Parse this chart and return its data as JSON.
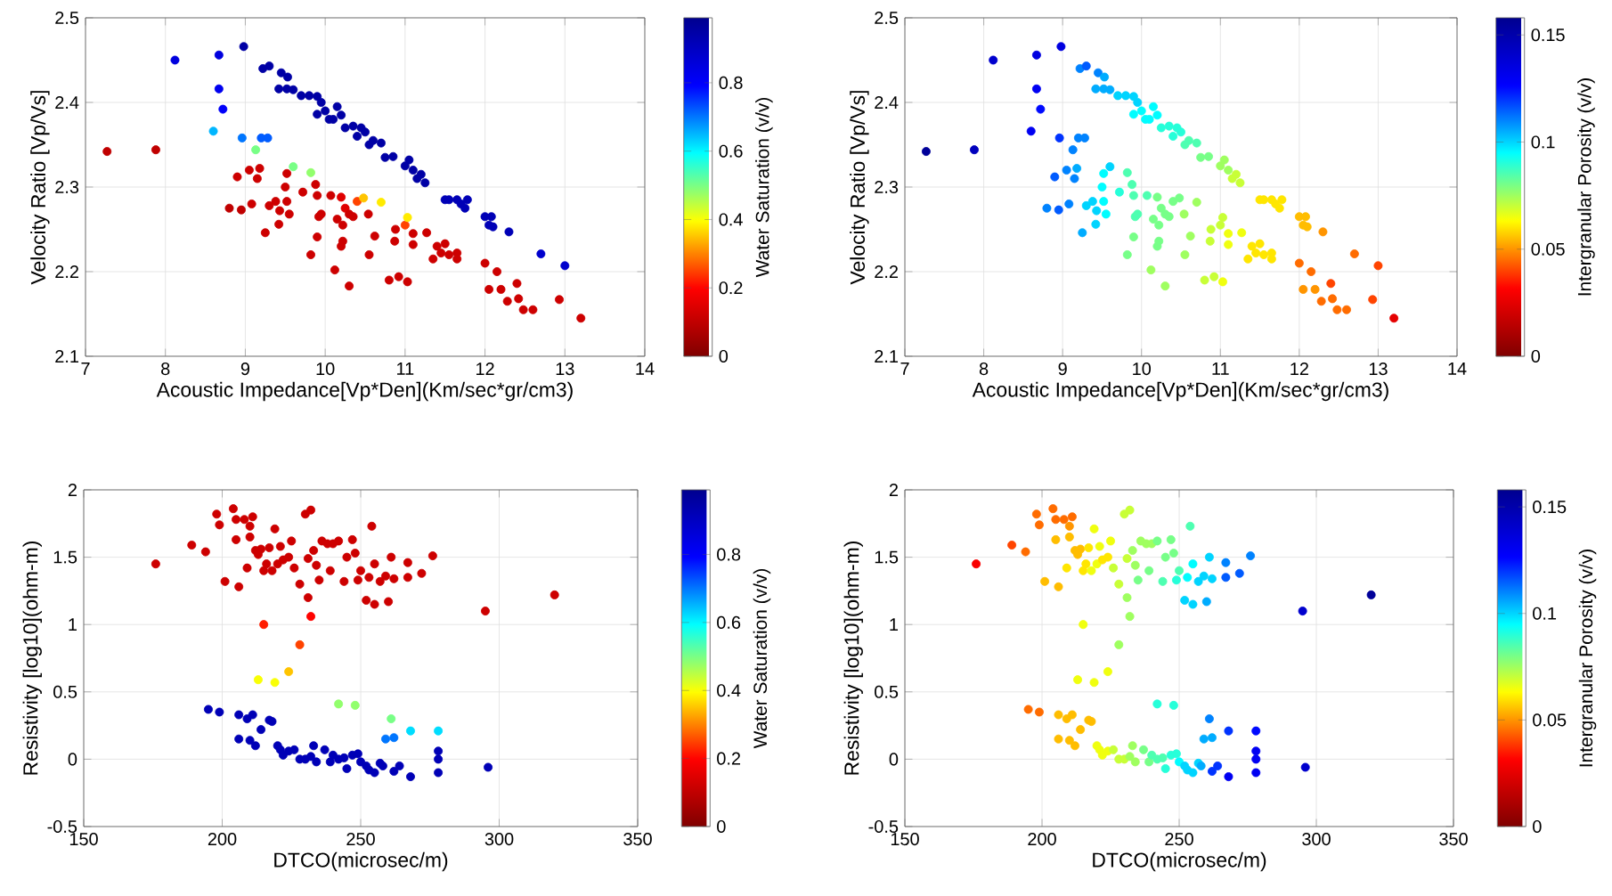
{
  "chart_data": [
    {
      "type": "scatter",
      "xlabel": "Acoustic Impedance[Vp*Den](Km/sec*gr/cm3)",
      "ylabel": "Velocity Ratio [Vp/Vs]",
      "clabel": "Water Saturation (v/v)",
      "xlim": [
        7,
        14
      ],
      "ylim": [
        2.1,
        2.5
      ],
      "xticks": [
        7,
        8,
        9,
        10,
        11,
        12,
        13,
        14
      ],
      "yticks": [
        2.1,
        2.2,
        2.3,
        2.4,
        2.5
      ],
      "clim": [
        0,
        0.99
      ],
      "cticks": [
        0,
        0.2,
        0.4,
        0.6,
        0.8
      ],
      "grid": true,
      "marker": "circle",
      "x": [
        8.12,
        8.67,
        8.67,
        8.72,
        8.98,
        9.22,
        9.3,
        9.45,
        9.53,
        9.42,
        9.52,
        9.6,
        9.7,
        9.8,
        9.9,
        9.95,
        9.9,
        10.0,
        10.05,
        10.15,
        10.2,
        10.1,
        10.25,
        10.35,
        10.4,
        10.5,
        10.45,
        10.6,
        10.7,
        10.55,
        10.75,
        10.85,
        11.0,
        11.05,
        11.1,
        11.2,
        11.25,
        11.15,
        11.5,
        11.55,
        11.65,
        11.7,
        11.78,
        11.75,
        12.0,
        12.08,
        12.05,
        12.1,
        12.3,
        12.7,
        13.0,
        8.6,
        8.96,
        9.2,
        9.28,
        9.13,
        9.6,
        9.82,
        7.27,
        7.88,
        8.8,
        8.9,
        8.95,
        9.05,
        9.08,
        9.15,
        9.18,
        9.25,
        9.3,
        9.38,
        9.42,
        9.43,
        9.52,
        9.5,
        9.52,
        9.55,
        9.72,
        9.82,
        9.88,
        9.9,
        9.9,
        9.92,
        9.95,
        10.07,
        10.12,
        10.15,
        10.2,
        10.22,
        10.2,
        10.22,
        10.25,
        10.3,
        10.3,
        10.35,
        10.4,
        10.48,
        10.54,
        10.55,
        10.62,
        10.7,
        10.8,
        10.87,
        10.88,
        10.92,
        11.0,
        11.03,
        11.03,
        11.1,
        11.1,
        11.27,
        11.35,
        11.4,
        11.45,
        11.5,
        11.55,
        11.65,
        11.65,
        12.0,
        12.05,
        12.15,
        12.2,
        12.28,
        12.4,
        12.42,
        12.48,
        12.6,
        12.93,
        13.2
      ],
      "values": [
        2.45,
        2.456,
        2.416,
        2.392,
        2.466,
        2.44,
        2.443,
        2.435,
        2.43,
        2.416,
        2.416,
        2.415,
        2.408,
        2.408,
        2.407,
        2.4,
        2.386,
        2.39,
        2.38,
        2.395,
        2.385,
        2.38,
        2.37,
        2.372,
        2.36,
        2.365,
        2.37,
        2.355,
        2.352,
        2.35,
        2.335,
        2.336,
        2.325,
        2.332,
        2.32,
        2.315,
        2.305,
        2.31,
        2.285,
        2.285,
        2.285,
        2.28,
        2.285,
        2.275,
        2.265,
        2.265,
        2.255,
        2.253,
        2.247,
        2.221,
        2.207,
        2.366,
        2.358,
        2.358,
        2.358,
        2.344,
        2.324,
        2.317,
        2.342,
        2.344,
        2.275,
        2.312,
        2.273,
        2.32,
        2.28,
        2.31,
        2.322,
        2.246,
        2.278,
        2.283,
        2.256,
        2.272,
        2.316,
        2.3,
        2.283,
        2.268,
        2.294,
        2.22,
        2.303,
        2.29,
        2.241,
        2.265,
        2.268,
        2.29,
        2.202,
        2.262,
        2.23,
        2.236,
        2.288,
        2.255,
        2.275,
        2.183,
        2.268,
        2.265,
        2.283,
        2.287,
        2.268,
        2.22,
        2.242,
        2.282,
        2.19,
        2.236,
        2.25,
        2.194,
        2.255,
        2.264,
        2.188,
        2.232,
        2.245,
        2.246,
        2.215,
        2.23,
        2.222,
        2.233,
        2.22,
        2.222,
        2.215,
        2.21,
        2.179,
        2.2,
        2.179,
        2.165,
        2.186,
        2.168,
        2.155,
        2.155,
        2.167,
        2.145
      ],
      "cvalues": [
        0.85,
        0.85,
        0.82,
        0.8,
        0.95,
        0.95,
        0.95,
        0.95,
        0.95,
        0.95,
        0.95,
        0.95,
        0.95,
        0.95,
        0.95,
        0.95,
        0.95,
        0.95,
        0.95,
        0.95,
        0.95,
        0.95,
        0.95,
        0.95,
        0.95,
        0.95,
        0.95,
        0.95,
        0.95,
        0.95,
        0.95,
        0.95,
        0.95,
        0.95,
        0.95,
        0.95,
        0.95,
        0.95,
        0.92,
        0.92,
        0.92,
        0.92,
        0.92,
        0.92,
        0.92,
        0.92,
        0.92,
        0.92,
        0.92,
        0.88,
        0.88,
        0.65,
        0.7,
        0.72,
        0.72,
        0.5,
        0.5,
        0.48,
        0.1,
        0.1,
        0.1,
        0.12,
        0.1,
        0.12,
        0.12,
        0.12,
        0.12,
        0.12,
        0.12,
        0.12,
        0.12,
        0.12,
        0.12,
        0.12,
        0.12,
        0.12,
        0.12,
        0.12,
        0.12,
        0.12,
        0.12,
        0.12,
        0.12,
        0.12,
        0.12,
        0.12,
        0.12,
        0.12,
        0.15,
        0.12,
        0.15,
        0.12,
        0.12,
        0.12,
        0.25,
        0.35,
        0.12,
        0.12,
        0.12,
        0.38,
        0.12,
        0.12,
        0.12,
        0.12,
        0.25,
        0.38,
        0.12,
        0.12,
        0.12,
        0.12,
        0.12,
        0.12,
        0.12,
        0.12,
        0.12,
        0.12,
        0.12,
        0.12,
        0.12,
        0.12,
        0.12,
        0.12,
        0.12,
        0.12,
        0.12,
        0.12,
        0.12,
        0.12
      ]
    },
    {
      "type": "scatter",
      "xlabel": "Acoustic Impedance[Vp*Den](Km/sec*gr/cm3)",
      "ylabel": "Velocity Ratio [Vp/Vs]",
      "clabel": "Intergranular Porosity (v/v)",
      "xlim": [
        7,
        14
      ],
      "ylim": [
        2.1,
        2.5
      ],
      "xticks": [
        7,
        8,
        9,
        10,
        11,
        12,
        13,
        14
      ],
      "yticks": [
        2.1,
        2.2,
        2.3,
        2.4,
        2.5
      ],
      "clim": [
        0,
        0.158
      ],
      "cticks": [
        0,
        0.05,
        0.1,
        0.15
      ],
      "grid": true,
      "marker": "circle",
      "x": [
        8.12,
        8.67,
        8.67,
        8.72,
        8.98,
        9.22,
        9.3,
        9.45,
        9.53,
        9.42,
        9.52,
        9.6,
        9.7,
        9.8,
        9.9,
        9.95,
        9.9,
        10.0,
        10.05,
        10.15,
        10.2,
        10.1,
        10.25,
        10.35,
        10.4,
        10.5,
        10.45,
        10.6,
        10.7,
        10.55,
        10.75,
        10.85,
        11.0,
        11.05,
        11.1,
        11.2,
        11.25,
        11.15,
        11.5,
        11.55,
        11.65,
        11.7,
        11.78,
        11.75,
        12.0,
        12.08,
        12.05,
        12.1,
        12.3,
        12.7,
        13.0,
        8.6,
        8.96,
        9.2,
        9.28,
        9.13,
        9.6,
        9.82,
        7.27,
        7.88,
        8.8,
        8.9,
        8.95,
        9.05,
        9.08,
        9.15,
        9.18,
        9.25,
        9.3,
        9.38,
        9.42,
        9.43,
        9.52,
        9.5,
        9.52,
        9.55,
        9.72,
        9.82,
        9.88,
        9.9,
        9.9,
        9.92,
        9.95,
        10.07,
        10.12,
        10.15,
        10.2,
        10.22,
        10.2,
        10.22,
        10.25,
        10.3,
        10.3,
        10.35,
        10.4,
        10.48,
        10.54,
        10.55,
        10.62,
        10.7,
        10.8,
        10.87,
        10.88,
        10.92,
        11.0,
        11.03,
        11.03,
        11.1,
        11.1,
        11.27,
        11.35,
        11.4,
        11.45,
        11.5,
        11.55,
        11.65,
        11.65,
        12.0,
        12.05,
        12.15,
        12.2,
        12.28,
        12.4,
        12.42,
        12.48,
        12.6,
        12.93,
        13.2
      ],
      "values": [
        2.45,
        2.456,
        2.416,
        2.392,
        2.466,
        2.44,
        2.443,
        2.435,
        2.43,
        2.416,
        2.416,
        2.415,
        2.408,
        2.408,
        2.407,
        2.4,
        2.386,
        2.39,
        2.38,
        2.395,
        2.385,
        2.38,
        2.37,
        2.372,
        2.36,
        2.365,
        2.37,
        2.355,
        2.352,
        2.35,
        2.335,
        2.336,
        2.325,
        2.332,
        2.32,
        2.315,
        2.305,
        2.31,
        2.285,
        2.285,
        2.285,
        2.28,
        2.285,
        2.275,
        2.265,
        2.265,
        2.255,
        2.253,
        2.247,
        2.221,
        2.207,
        2.366,
        2.358,
        2.358,
        2.358,
        2.344,
        2.324,
        2.317,
        2.342,
        2.344,
        2.275,
        2.312,
        2.273,
        2.32,
        2.28,
        2.31,
        2.322,
        2.246,
        2.278,
        2.283,
        2.256,
        2.272,
        2.316,
        2.3,
        2.283,
        2.268,
        2.294,
        2.22,
        2.303,
        2.29,
        2.241,
        2.265,
        2.268,
        2.29,
        2.202,
        2.262,
        2.23,
        2.236,
        2.288,
        2.255,
        2.275,
        2.183,
        2.268,
        2.265,
        2.283,
        2.287,
        2.268,
        2.22,
        2.242,
        2.282,
        2.19,
        2.236,
        2.25,
        2.194,
        2.255,
        2.264,
        2.188,
        2.232,
        2.245,
        2.246,
        2.215,
        2.23,
        2.222,
        2.233,
        2.22,
        2.222,
        2.215,
        2.21,
        2.179,
        2.2,
        2.179,
        2.165,
        2.186,
        2.168,
        2.155,
        2.155,
        2.167,
        2.145
      ],
      "cvalues": [
        0.14,
        0.135,
        0.13,
        0.125,
        0.135,
        0.11,
        0.115,
        0.11,
        0.105,
        0.105,
        0.105,
        0.105,
        0.1,
        0.1,
        0.1,
        0.1,
        0.095,
        0.095,
        0.095,
        0.095,
        0.095,
        0.095,
        0.09,
        0.09,
        0.09,
        0.09,
        0.09,
        0.085,
        0.085,
        0.085,
        0.08,
        0.08,
        0.075,
        0.075,
        0.075,
        0.07,
        0.07,
        0.07,
        0.06,
        0.06,
        0.06,
        0.06,
        0.06,
        0.06,
        0.055,
        0.055,
        0.055,
        0.055,
        0.05,
        0.045,
        0.04,
        0.13,
        0.12,
        0.11,
        0.11,
        0.11,
        0.1,
        0.085,
        0.155,
        0.145,
        0.11,
        0.115,
        0.115,
        0.11,
        0.11,
        0.11,
        0.105,
        0.105,
        0.1,
        0.1,
        0.1,
        0.1,
        0.095,
        0.095,
        0.095,
        0.095,
        0.09,
        0.08,
        0.085,
        0.085,
        0.08,
        0.085,
        0.085,
        0.085,
        0.075,
        0.08,
        0.08,
        0.08,
        0.08,
        0.08,
        0.08,
        0.075,
        0.08,
        0.08,
        0.08,
        0.08,
        0.075,
        0.075,
        0.075,
        0.075,
        0.07,
        0.07,
        0.07,
        0.07,
        0.07,
        0.07,
        0.065,
        0.065,
        0.065,
        0.065,
        0.06,
        0.06,
        0.06,
        0.06,
        0.06,
        0.06,
        0.06,
        0.045,
        0.05,
        0.045,
        0.05,
        0.045,
        0.04,
        0.045,
        0.045,
        0.045,
        0.04,
        0.025
      ]
    },
    {
      "type": "scatter",
      "xlabel": "DTCO(microsec/m)",
      "ylabel": "Resistivity [log10](ohm-m)",
      "clabel": "Water Saturation (v/v)",
      "xlim": [
        150,
        350
      ],
      "ylim": [
        -0.5,
        2
      ],
      "xticks": [
        150,
        200,
        250,
        300,
        350
      ],
      "yticks": [
        -0.5,
        0,
        0.5,
        1,
        1.5,
        2
      ],
      "clim": [
        0,
        0.99
      ],
      "cticks": [
        0,
        0.2,
        0.4,
        0.6,
        0.8
      ],
      "grid": true,
      "marker": "circle",
      "x": [
        176,
        189,
        194,
        198,
        199,
        201,
        204,
        205,
        205,
        206,
        208,
        209,
        210,
        210,
        211,
        212,
        213,
        214,
        215,
        216,
        217,
        218,
        219,
        220,
        221,
        222,
        224,
        225,
        226,
        228,
        230,
        231,
        231,
        232,
        232,
        233,
        234,
        235,
        236,
        238,
        239,
        240,
        242,
        244,
        245,
        247,
        248,
        249,
        250,
        252,
        253,
        254,
        255,
        255,
        257,
        259,
        260,
        261,
        262,
        267,
        267,
        272,
        276,
        295,
        320,
        215,
        228,
        224,
        213,
        219,
        242,
        248,
        261,
        268,
        278,
        259,
        262,
        195,
        199,
        206,
        206,
        209,
        210,
        211,
        212,
        214,
        217,
        218,
        220,
        221,
        222,
        224,
        226,
        228,
        230,
        232,
        233,
        234,
        237,
        239,
        240,
        242,
        244,
        245,
        247,
        249,
        250,
        252,
        253,
        255,
        257,
        258,
        262,
        264,
        268,
        278,
        278,
        278,
        296
      ],
      "values": [
        1.45,
        1.59,
        1.54,
        1.82,
        1.74,
        1.32,
        1.86,
        1.78,
        1.63,
        1.28,
        1.78,
        1.42,
        1.65,
        1.73,
        1.8,
        1.55,
        1.52,
        1.56,
        1.4,
        1.45,
        1.57,
        1.4,
        1.71,
        1.45,
        1.58,
        1.48,
        1.5,
        1.62,
        1.42,
        1.3,
        1.82,
        1.2,
        1.49,
        1.85,
        1.06,
        1.55,
        1.44,
        1.33,
        1.62,
        1.6,
        1.4,
        1.6,
        1.62,
        1.32,
        1.5,
        1.63,
        1.53,
        1.33,
        1.4,
        1.18,
        1.35,
        1.73,
        1.15,
        1.45,
        1.32,
        1.36,
        1.17,
        1.5,
        1.34,
        1.46,
        1.35,
        1.38,
        1.51,
        1.1,
        1.22,
        1.0,
        0.85,
        0.65,
        0.59,
        0.57,
        0.41,
        0.4,
        0.3,
        0.21,
        0.21,
        0.15,
        0.16,
        0.37,
        0.35,
        0.33,
        0.15,
        0.3,
        0.14,
        0.33,
        0.1,
        0.22,
        0.29,
        0.28,
        0.1,
        0.07,
        0.03,
        0.06,
        0.07,
        0.0,
        0.0,
        0.02,
        0.1,
        -0.02,
        0.07,
        -0.02,
        0.03,
        0.0,
        0.01,
        -0.07,
        0.03,
        0.04,
        -0.02,
        -0.05,
        -0.08,
        -0.1,
        -0.03,
        -0.05,
        -0.09,
        -0.05,
        -0.13,
        0.06,
        0.0,
        -0.1,
        -0.06
      ],
      "cvalues": [
        0.12,
        0.12,
        0.12,
        0.12,
        0.12,
        0.12,
        0.12,
        0.12,
        0.12,
        0.12,
        0.12,
        0.12,
        0.12,
        0.12,
        0.12,
        0.12,
        0.12,
        0.12,
        0.12,
        0.12,
        0.12,
        0.12,
        0.12,
        0.12,
        0.12,
        0.12,
        0.12,
        0.12,
        0.12,
        0.12,
        0.12,
        0.12,
        0.12,
        0.12,
        0.2,
        0.12,
        0.12,
        0.12,
        0.12,
        0.12,
        0.12,
        0.12,
        0.12,
        0.12,
        0.12,
        0.12,
        0.12,
        0.12,
        0.12,
        0.12,
        0.12,
        0.12,
        0.12,
        0.12,
        0.12,
        0.12,
        0.12,
        0.12,
        0.12,
        0.12,
        0.12,
        0.12,
        0.12,
        0.12,
        0.12,
        0.22,
        0.25,
        0.35,
        0.4,
        0.4,
        0.48,
        0.48,
        0.5,
        0.62,
        0.62,
        0.7,
        0.7,
        0.92,
        0.92,
        0.92,
        0.92,
        0.92,
        0.92,
        0.92,
        0.92,
        0.92,
        0.92,
        0.92,
        0.92,
        0.92,
        0.92,
        0.92,
        0.92,
        0.92,
        0.92,
        0.92,
        0.92,
        0.92,
        0.92,
        0.92,
        0.92,
        0.92,
        0.92,
        0.92,
        0.92,
        0.92,
        0.92,
        0.92,
        0.92,
        0.92,
        0.92,
        0.92,
        0.92,
        0.92,
        0.92,
        0.92,
        0.92,
        0.92,
        0.92
      ]
    },
    {
      "type": "scatter",
      "xlabel": "DTCO(microsec/m)",
      "ylabel": "Resistivity [log10](ohm-m)",
      "clabel": "Intergranular Porosity (v/v)",
      "xlim": [
        150,
        350
      ],
      "ylim": [
        -0.5,
        2
      ],
      "xticks": [
        150,
        200,
        250,
        300,
        350
      ],
      "yticks": [
        -0.5,
        0,
        0.5,
        1,
        1.5,
        2
      ],
      "clim": [
        0,
        0.158
      ],
      "cticks": [
        0,
        0.05,
        0.1,
        0.15
      ],
      "grid": true,
      "marker": "circle",
      "x": [
        176,
        189,
        194,
        198,
        199,
        201,
        204,
        205,
        205,
        206,
        208,
        209,
        210,
        210,
        211,
        212,
        213,
        214,
        215,
        216,
        217,
        218,
        219,
        220,
        221,
        222,
        224,
        225,
        226,
        228,
        230,
        231,
        231,
        232,
        232,
        233,
        234,
        235,
        236,
        238,
        239,
        240,
        242,
        244,
        245,
        247,
        248,
        249,
        250,
        252,
        253,
        254,
        255,
        255,
        257,
        259,
        260,
        261,
        262,
        267,
        267,
        272,
        276,
        295,
        320,
        215,
        228,
        224,
        213,
        219,
        242,
        248,
        261,
        268,
        278,
        259,
        262,
        195,
        199,
        206,
        206,
        209,
        210,
        211,
        212,
        214,
        217,
        218,
        220,
        221,
        222,
        224,
        226,
        228,
        230,
        232,
        233,
        234,
        237,
        239,
        240,
        242,
        244,
        245,
        247,
        249,
        250,
        252,
        253,
        255,
        257,
        258,
        262,
        264,
        268,
        278,
        278,
        278,
        296
      ],
      "values": [
        1.45,
        1.59,
        1.54,
        1.82,
        1.74,
        1.32,
        1.86,
        1.78,
        1.63,
        1.28,
        1.78,
        1.42,
        1.65,
        1.73,
        1.8,
        1.55,
        1.52,
        1.56,
        1.4,
        1.45,
        1.57,
        1.4,
        1.71,
        1.45,
        1.58,
        1.48,
        1.5,
        1.62,
        1.42,
        1.3,
        1.82,
        1.2,
        1.49,
        1.85,
        1.06,
        1.55,
        1.44,
        1.33,
        1.62,
        1.6,
        1.4,
        1.6,
        1.62,
        1.32,
        1.5,
        1.63,
        1.53,
        1.33,
        1.4,
        1.18,
        1.35,
        1.73,
        1.15,
        1.45,
        1.32,
        1.36,
        1.17,
        1.5,
        1.34,
        1.46,
        1.35,
        1.38,
        1.51,
        1.1,
        1.22,
        1.0,
        0.85,
        0.65,
        0.59,
        0.57,
        0.41,
        0.4,
        0.3,
        0.21,
        0.21,
        0.15,
        0.16,
        0.37,
        0.35,
        0.33,
        0.15,
        0.3,
        0.14,
        0.33,
        0.1,
        0.22,
        0.29,
        0.28,
        0.1,
        0.07,
        0.03,
        0.06,
        0.07,
        0.0,
        0.0,
        0.02,
        0.1,
        -0.02,
        0.07,
        -0.02,
        0.03,
        0.0,
        0.01,
        -0.07,
        0.03,
        0.04,
        -0.02,
        -0.05,
        -0.08,
        -0.1,
        -0.03,
        -0.05,
        -0.09,
        -0.05,
        -0.13,
        0.06,
        0.0,
        -0.1,
        -0.06
      ],
      "cvalues": [
        0.03,
        0.04,
        0.045,
        0.045,
        0.045,
        0.055,
        0.045,
        0.045,
        0.055,
        0.055,
        0.045,
        0.06,
        0.055,
        0.05,
        0.045,
        0.055,
        0.055,
        0.055,
        0.06,
        0.06,
        0.06,
        0.065,
        0.065,
        0.065,
        0.065,
        0.06,
        0.06,
        0.065,
        0.07,
        0.07,
        0.07,
        0.075,
        0.07,
        0.07,
        0.075,
        0.075,
        0.075,
        0.08,
        0.075,
        0.075,
        0.08,
        0.075,
        0.08,
        0.085,
        0.08,
        0.08,
        0.08,
        0.09,
        0.085,
        0.1,
        0.095,
        0.085,
        0.1,
        0.095,
        0.1,
        0.1,
        0.105,
        0.1,
        0.1,
        0.11,
        0.115,
        0.115,
        0.11,
        0.14,
        0.155,
        0.065,
        0.075,
        0.065,
        0.065,
        0.065,
        0.09,
        0.09,
        0.11,
        0.12,
        0.125,
        0.105,
        0.105,
        0.045,
        0.045,
        0.055,
        0.055,
        0.055,
        0.055,
        0.055,
        0.055,
        0.055,
        0.055,
        0.055,
        0.065,
        0.065,
        0.065,
        0.065,
        0.07,
        0.07,
        0.07,
        0.075,
        0.075,
        0.075,
        0.08,
        0.08,
        0.085,
        0.085,
        0.085,
        0.09,
        0.09,
        0.09,
        0.095,
        0.1,
        0.1,
        0.1,
        0.1,
        0.105,
        0.12,
        0.12,
        0.13,
        0.13,
        0.13,
        0.13,
        0.14
      ]
    }
  ]
}
